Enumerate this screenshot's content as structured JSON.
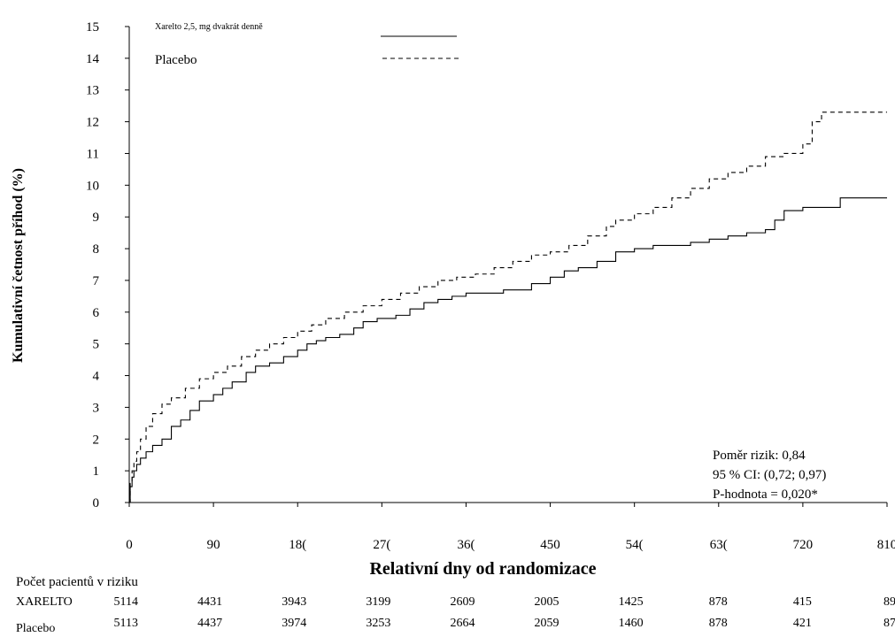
{
  "chart_data": {
    "type": "line",
    "title": "",
    "xlabel": "Relativní dny od randomizace",
    "ylabel": "Kumulativní četnost příhod (%)",
    "xlim": [
      0,
      810
    ],
    "ylim": [
      0,
      15
    ],
    "x_ticks": [
      "0",
      "90",
      "18(",
      "27(",
      "36(",
      "450",
      "54(",
      "63(",
      "720",
      "810"
    ],
    "y_ticks": [
      "0",
      "1",
      "2",
      "3",
      "4",
      "5",
      "6",
      "7",
      "8",
      "9",
      "10",
      "11",
      "12",
      "13",
      "14",
      "15"
    ],
    "grid": false,
    "legend_position": "top-left",
    "series": [
      {
        "name": "Xarelto 2,5, mg dvakrát denně",
        "style": "solid",
        "color": "#000000",
        "x": [
          0,
          1,
          3,
          5,
          8,
          12,
          18,
          25,
          35,
          45,
          55,
          65,
          75,
          90,
          100,
          110,
          125,
          135,
          150,
          165,
          180,
          190,
          200,
          210,
          225,
          240,
          250,
          265,
          285,
          300,
          315,
          330,
          345,
          360,
          380,
          400,
          415,
          430,
          450,
          465,
          480,
          500,
          520,
          540,
          560,
          580,
          600,
          620,
          640,
          660,
          680,
          690,
          700,
          720,
          750,
          760,
          810
        ],
        "y": [
          0,
          0.5,
          0.8,
          1.0,
          1.2,
          1.4,
          1.6,
          1.8,
          2.0,
          2.4,
          2.6,
          2.9,
          3.2,
          3.4,
          3.6,
          3.8,
          4.1,
          4.3,
          4.4,
          4.6,
          4.8,
          5.0,
          5.1,
          5.2,
          5.3,
          5.5,
          5.7,
          5.8,
          5.9,
          6.1,
          6.3,
          6.4,
          6.5,
          6.6,
          6.6,
          6.7,
          6.7,
          6.9,
          7.1,
          7.3,
          7.4,
          7.6,
          7.9,
          8.0,
          8.1,
          8.1,
          8.2,
          8.3,
          8.4,
          8.5,
          8.6,
          8.9,
          9.2,
          9.3,
          9.3,
          9.6,
          9.6
        ]
      },
      {
        "name": "Placebo",
        "style": "dashed",
        "color": "#000000",
        "x": [
          0,
          1,
          3,
          5,
          8,
          12,
          18,
          25,
          35,
          45,
          60,
          75,
          90,
          105,
          120,
          135,
          150,
          165,
          180,
          195,
          210,
          230,
          250,
          270,
          290,
          310,
          330,
          350,
          370,
          390,
          410,
          430,
          450,
          470,
          490,
          510,
          520,
          540,
          560,
          580,
          600,
          620,
          640,
          660,
          680,
          700,
          720,
          730,
          740,
          760,
          810
        ],
        "y": [
          0,
          0.6,
          1.0,
          1.3,
          1.6,
          2.0,
          2.4,
          2.8,
          3.1,
          3.3,
          3.6,
          3.9,
          4.1,
          4.3,
          4.6,
          4.8,
          5.0,
          5.2,
          5.4,
          5.6,
          5.8,
          6.0,
          6.2,
          6.4,
          6.6,
          6.8,
          7.0,
          7.1,
          7.2,
          7.4,
          7.6,
          7.8,
          7.9,
          8.1,
          8.4,
          8.7,
          8.9,
          9.1,
          9.3,
          9.6,
          9.9,
          10.2,
          10.4,
          10.6,
          10.9,
          11.0,
          11.3,
          12.0,
          12.3,
          12.3,
          12.3
        ]
      }
    ],
    "annotations": [
      "Poměr rizik: 0,84",
      "95 % CI: (0,72; 0,97)",
      "P-hodnota = 0,020*"
    ],
    "risk_table": {
      "title": "Počet pacientů v riziku",
      "rows": [
        {
          "label": "XARELTO",
          "values": [
            "5114",
            "4431",
            "3943",
            "3199",
            "2609",
            "2005",
            "1425",
            "878",
            "415",
            "89"
          ]
        },
        {
          "label": "Placebo",
          "values": [
            "5113",
            "4437",
            "3974",
            "3253",
            "2664",
            "2059",
            "1460",
            "878",
            "421",
            "87"
          ]
        }
      ]
    }
  }
}
